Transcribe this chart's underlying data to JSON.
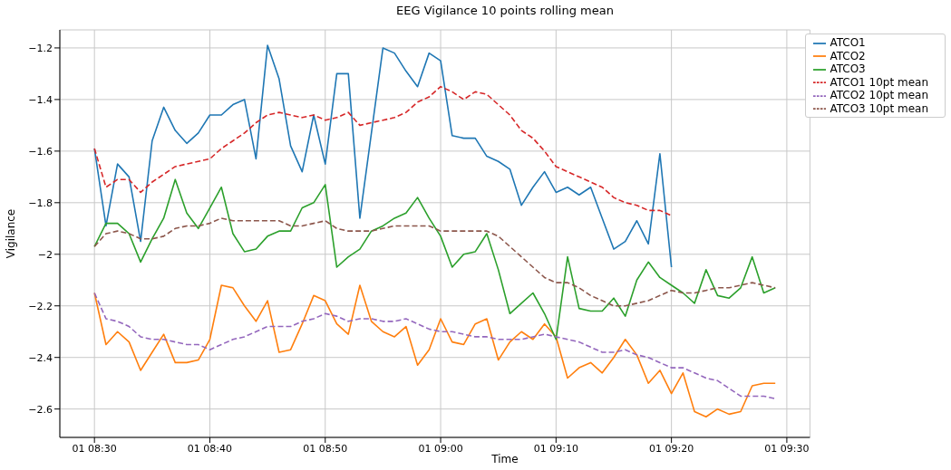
{
  "chart_data": {
    "type": "line",
    "title": "EEG Vigilance 10 points rolling mean",
    "xlabel": "Time",
    "ylabel": "Vigilance",
    "x": [
      "--01-01T08:30",
      "--01-01T08:31",
      "--01-01T08:32",
      "--01-01T08:33",
      "--01-01T08:34",
      "--01-01T08:35",
      "--01-01T08:36",
      "--01-01T08:37",
      "--01-01T08:38",
      "--01-01T08:39",
      "--01-01T08:40",
      "--01-01T08:41",
      "--01-01T08:42",
      "--01-01T08:43",
      "--01-01T08:44",
      "--01-01T08:45",
      "--01-01T08:46",
      "--01-01T08:47",
      "--01-01T08:48",
      "--01-01T08:49",
      "--01-01T08:50",
      "--01-01T08:51",
      "--01-01T08:52",
      "--01-01T08:53",
      "--01-01T08:54",
      "--01-01T08:55",
      "--01-01T08:56",
      "--01-01T08:57",
      "--01-01T08:58",
      "--01-01T08:59",
      "--01-01T09:00",
      "--01-01T09:01",
      "--01-01T09:02",
      "--01-01T09:03",
      "--01-01T09:04",
      "--01-01T09:05",
      "--01-01T09:06",
      "--01-01T09:07",
      "--01-01T09:08",
      "--01-01T09:09",
      "--01-01T09:10",
      "--01-01T09:11",
      "--01-01T09:12",
      "--01-01T09:13",
      "--01-01T09:14",
      "--01-01T09:15",
      "--01-01T09:16",
      "--01-01T09:17",
      "--01-01T09:18",
      "--01-01T09:19",
      "--01-01T09:20",
      "--01-01T09:21",
      "--01-01T09:22",
      "--01-01T09:23",
      "--01-01T09:24",
      "--01-01T09:25",
      "--01-01T09:26",
      "--01-01T09:27",
      "--01-01T09:28",
      "--01-01T09:29"
    ],
    "series": [
      {
        "name": "ATCO1",
        "color": "#1f77b4",
        "values": [
          -1.59,
          -1.89,
          -1.65,
          -1.7,
          -1.95,
          -1.56,
          -1.43,
          -1.52,
          -1.57,
          -1.53,
          -1.46,
          -1.46,
          -1.42,
          -1.4,
          -1.63,
          -1.19,
          -1.32,
          -1.58,
          -1.68,
          -1.46,
          -1.65,
          -1.3,
          -1.3,
          -1.86,
          -1.53,
          -1.2,
          -1.22,
          -1.29,
          -1.35,
          -1.22,
          -1.25,
          -1.54,
          -1.55,
          -1.55,
          -1.62,
          -1.64,
          -1.67,
          -1.81,
          -1.74,
          -1.68,
          -1.76,
          -1.74,
          -1.77,
          -1.74,
          -1.86,
          -1.98,
          -1.95,
          -1.87,
          -1.96,
          -1.61,
          -2.05,
          null,
          null,
          null,
          null,
          null,
          null,
          null,
          null,
          null
        ]
      },
      {
        "name": "ATCO2",
        "color": "#ff7f0e",
        "values": [
          -2.15,
          -2.35,
          -2.3,
          -2.34,
          -2.45,
          -2.38,
          -2.31,
          -2.42,
          -2.42,
          -2.41,
          -2.33,
          -2.12,
          -2.13,
          -2.2,
          -2.26,
          -2.18,
          -2.38,
          -2.37,
          -2.27,
          -2.16,
          -2.18,
          -2.27,
          -2.31,
          -2.12,
          -2.26,
          -2.3,
          -2.32,
          -2.28,
          -2.43,
          -2.37,
          -2.25,
          -2.34,
          -2.35,
          -2.27,
          -2.25,
          -2.41,
          -2.34,
          -2.3,
          -2.33,
          -2.27,
          -2.32,
          -2.48,
          -2.44,
          -2.42,
          -2.46,
          -2.4,
          -2.33,
          -2.39,
          -2.5,
          -2.45,
          -2.54,
          -2.46,
          -2.61,
          -2.63,
          -2.6,
          -2.62,
          -2.61,
          -2.51,
          -2.5,
          -2.5
        ]
      },
      {
        "name": "ATCO3",
        "color": "#2ca02c",
        "values": [
          -1.97,
          -1.88,
          -1.88,
          -1.92,
          -2.03,
          -1.94,
          -1.86,
          -1.71,
          -1.84,
          -1.9,
          -1.82,
          -1.74,
          -1.92,
          -1.99,
          -1.98,
          -1.93,
          -1.91,
          -1.91,
          -1.82,
          -1.8,
          -1.73,
          -2.05,
          -2.01,
          -1.98,
          -1.91,
          -1.89,
          -1.86,
          -1.84,
          -1.78,
          -1.86,
          -1.93,
          -2.05,
          -2,
          -1.99,
          -1.92,
          -2.06,
          -2.23,
          -2.19,
          -2.15,
          -2.23,
          -2.33,
          -2.01,
          -2.21,
          -2.22,
          -2.22,
          -2.17,
          -2.24,
          -2.1,
          -2.03,
          -2.09,
          -2.12,
          -2.15,
          -2.19,
          -2.06,
          -2.16,
          -2.17,
          -2.13,
          -2.01,
          -2.15,
          -2.13
        ]
      },
      {
        "name": "ATCO1 10pt mean",
        "color": "#d62728",
        "line_style": "dashed",
        "values": [
          -1.59,
          -1.74,
          -1.71,
          -1.71,
          -1.76,
          -1.72,
          -1.69,
          -1.66,
          -1.65,
          -1.64,
          -1.63,
          -1.59,
          -1.56,
          -1.53,
          -1.49,
          -1.46,
          -1.45,
          -1.46,
          -1.47,
          -1.46,
          -1.48,
          -1.47,
          -1.45,
          -1.5,
          -1.49,
          -1.48,
          -1.47,
          -1.45,
          -1.41,
          -1.39,
          -1.35,
          -1.37,
          -1.4,
          -1.37,
          -1.38,
          -1.42,
          -1.46,
          -1.52,
          -1.55,
          -1.6,
          -1.66,
          -1.68,
          -1.7,
          -1.72,
          -1.74,
          -1.78,
          -1.8,
          -1.81,
          -1.83,
          -1.83,
          -1.85,
          null,
          null,
          null,
          null,
          null,
          null,
          null,
          null,
          null
        ]
      },
      {
        "name": "ATCO2 10pt mean",
        "color": "#9467bd",
        "line_style": "dashed",
        "values": [
          -2.15,
          -2.25,
          -2.26,
          -2.28,
          -2.32,
          -2.33,
          -2.33,
          -2.34,
          -2.35,
          -2.35,
          -2.37,
          -2.35,
          -2.33,
          -2.32,
          -2.3,
          -2.28,
          -2.28,
          -2.28,
          -2.26,
          -2.25,
          -2.23,
          -2.24,
          -2.26,
          -2.25,
          -2.25,
          -2.26,
          -2.26,
          -2.25,
          -2.27,
          -2.29,
          -2.3,
          -2.3,
          -2.31,
          -2.32,
          -2.32,
          -2.33,
          -2.33,
          -2.33,
          -2.32,
          -2.31,
          -2.32,
          -2.33,
          -2.34,
          -2.36,
          -2.38,
          -2.38,
          -2.37,
          -2.39,
          -2.4,
          -2.42,
          -2.44,
          -2.44,
          -2.46,
          -2.48,
          -2.49,
          -2.52,
          -2.55,
          -2.55,
          -2.55,
          -2.56
        ]
      },
      {
        "name": "ATCO3 10pt mean",
        "color": "#8c564b",
        "line_style": "dashed",
        "values": [
          -1.97,
          -1.92,
          -1.91,
          -1.92,
          -1.94,
          -1.94,
          -1.93,
          -1.9,
          -1.89,
          -1.89,
          -1.88,
          -1.86,
          -1.87,
          -1.87,
          -1.87,
          -1.87,
          -1.87,
          -1.89,
          -1.89,
          -1.88,
          -1.87,
          -1.9,
          -1.91,
          -1.91,
          -1.91,
          -1.9,
          -1.89,
          -1.89,
          -1.89,
          -1.89,
          -1.91,
          -1.91,
          -1.91,
          -1.91,
          -1.91,
          -1.93,
          -1.97,
          -2.01,
          -2.05,
          -2.09,
          -2.11,
          -2.11,
          -2.13,
          -2.16,
          -2.18,
          -2.2,
          -2.2,
          -2.19,
          -2.18,
          -2.16,
          -2.14,
          -2.15,
          -2.15,
          -2.14,
          -2.13,
          -2.13,
          -2.12,
          -2.11,
          -2.12,
          -2.13
        ]
      }
    ],
    "xlim": [
      "--01-01T08:27",
      "--01-01T09:32"
    ],
    "xticks": [
      {
        "value": "--01-01T08:30",
        "label": "01 08:30"
      },
      {
        "value": "--01-01T08:40",
        "label": "01 08:40"
      },
      {
        "value": "--01-01T08:50",
        "label": "01 08:50"
      },
      {
        "value": "--01-01T09:00",
        "label": "01 09:00"
      },
      {
        "value": "--01-01T09:10",
        "label": "01 09:10"
      },
      {
        "value": "--01-01T09:20",
        "label": "01 09:20"
      },
      {
        "value": "--01-01T09:30",
        "label": "01 09:30"
      }
    ],
    "ylim": [
      -2.71,
      -1.13
    ],
    "yticks": [
      -2.6,
      -2.4,
      -2.2,
      -2,
      -1.8,
      -1.6,
      -1.4,
      -1.2
    ],
    "grid": true,
    "legend": "top right"
  }
}
